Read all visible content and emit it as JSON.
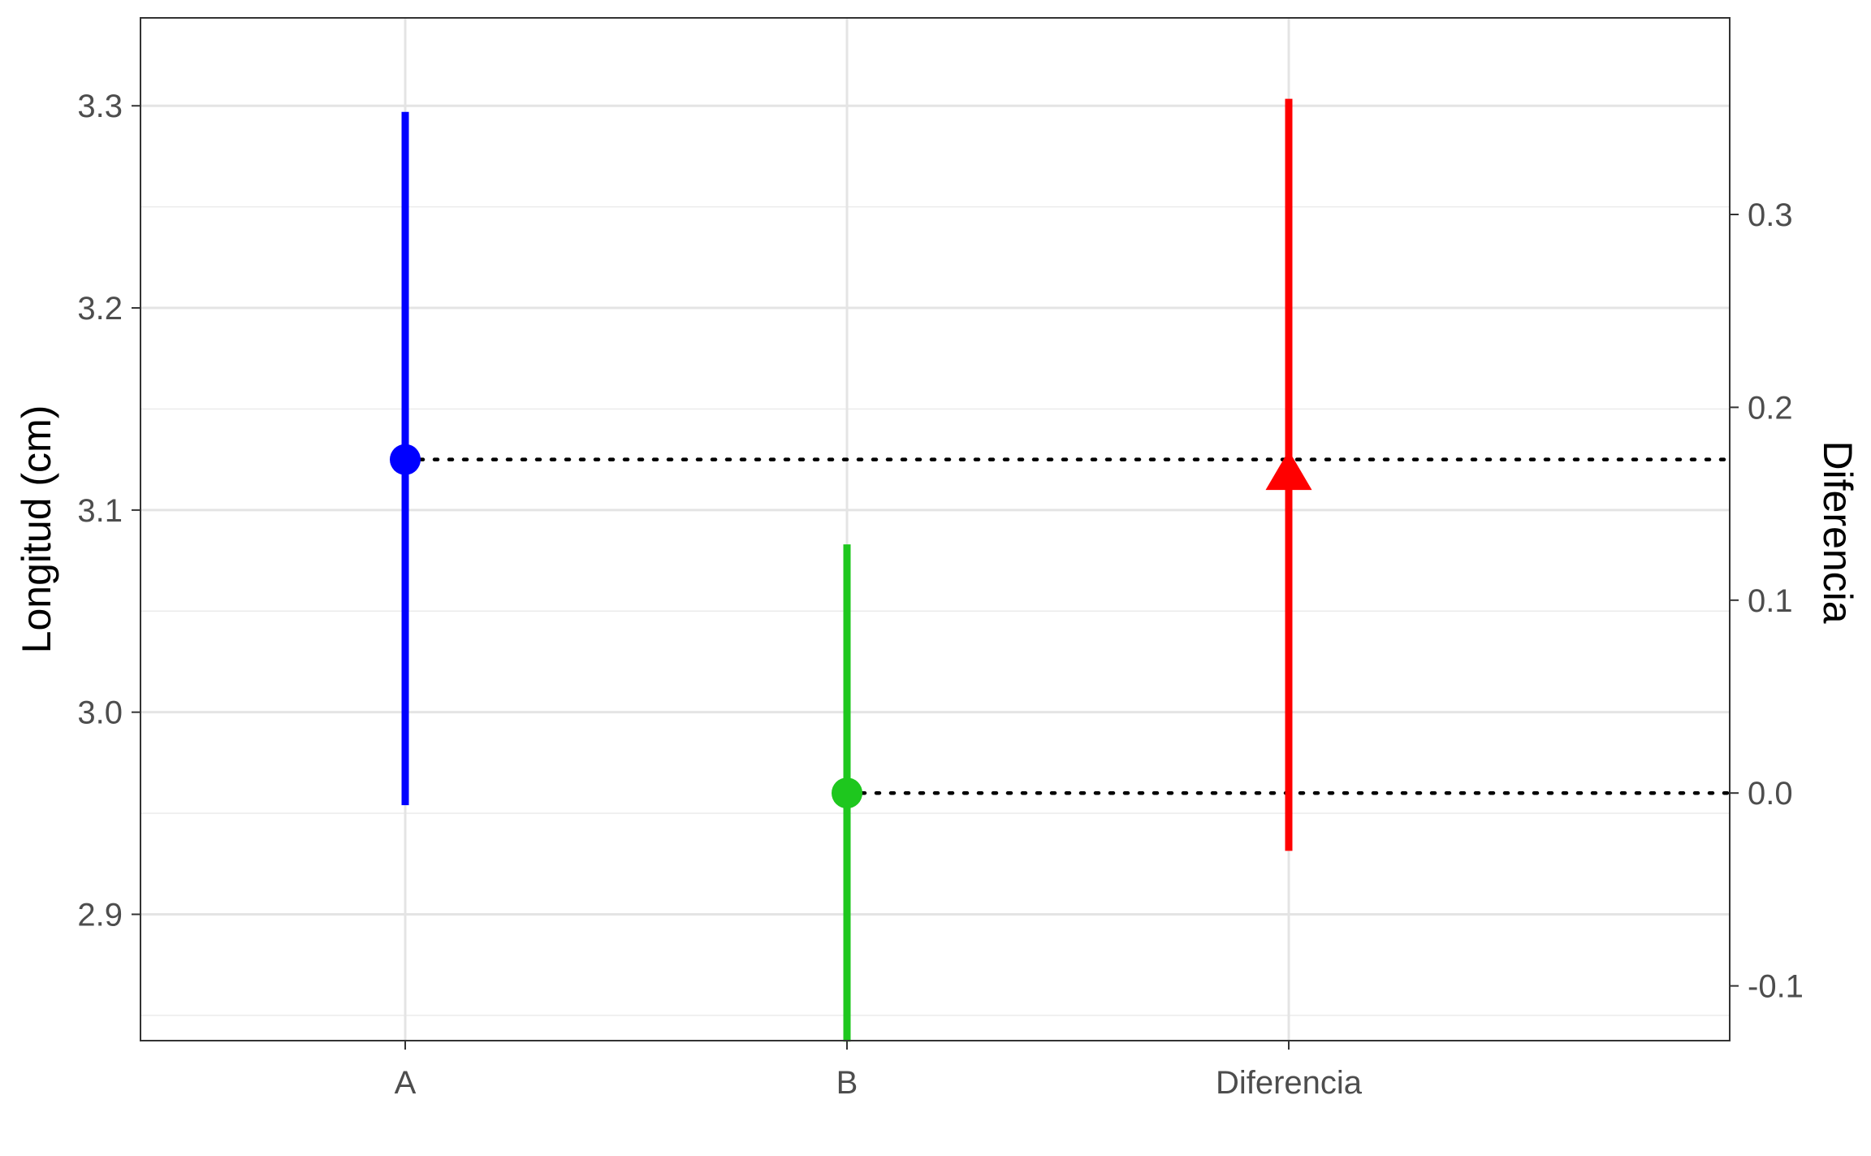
{
  "chart_data": {
    "type": "errorbar",
    "title": "",
    "xlabel": "",
    "ylabel": "Longitud (cm)",
    "y2label": "Diferencia",
    "categories": [
      "A",
      "B",
      "Diferencia"
    ],
    "ylim": [
      2.8375,
      3.3435
    ],
    "y_ticks": [
      "2.9",
      "3.0",
      "3.1",
      "3.2",
      "3.3"
    ],
    "y_tick_values": [
      2.9,
      3.0,
      3.1,
      3.2,
      3.3
    ],
    "y2_ticks": [
      "-0.1",
      "0.0",
      "0.1",
      "0.2",
      "0.3"
    ],
    "y2_tick_values": [
      -0.1,
      0.0,
      0.1,
      0.2,
      0.3
    ],
    "y2_zero_on_primary": 2.96,
    "grid": true,
    "points": [
      {
        "category": "A",
        "estimate": 3.125,
        "lower": 2.954,
        "upper": 3.297,
        "shape": "circle",
        "color": "#0000ff",
        "axis": "primary"
      },
      {
        "category": "B",
        "estimate": 2.96,
        "lower": 2.837,
        "upper": 3.083,
        "shape": "circle",
        "color": "#1ec71e",
        "axis": "primary"
      },
      {
        "category": "Diferencia",
        "estimate": 0.165,
        "lower": -0.03,
        "upper": 0.36,
        "shape": "triangle",
        "color": "#ff0000",
        "axis": "secondary"
      }
    ],
    "reference_lines": [
      {
        "from_category": "A",
        "value": 3.125,
        "style": "dotted",
        "color": "#000000"
      },
      {
        "from_category": "B",
        "value": 2.96,
        "style": "dotted",
        "color": "#000000"
      }
    ]
  }
}
